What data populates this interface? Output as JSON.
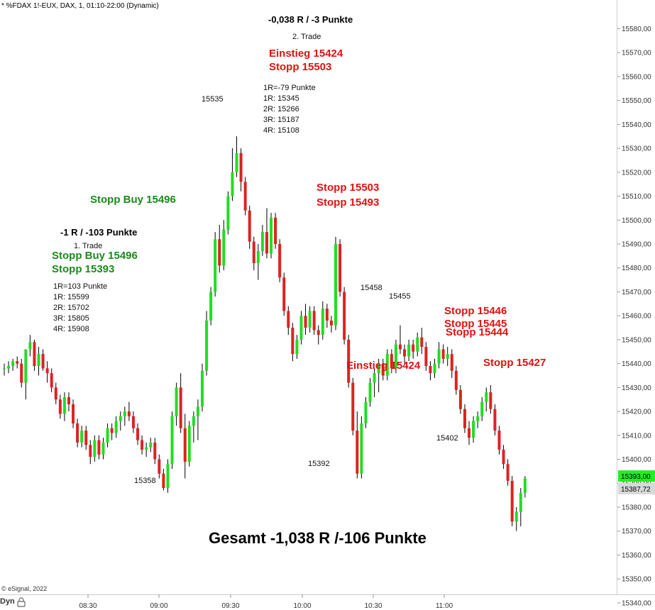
{
  "header": {
    "symbol_line": "* %FDAX 1!-EUX, DAX, 1, 01:10-22:00 (Dynamic)"
  },
  "footer": {
    "copyright": "© eSignal, 2022",
    "dyn_label": "Dyn"
  },
  "colors": {
    "up": "#22dd22",
    "down": "#dd2222",
    "wick": "#000000",
    "green_text": "#1a8a1a",
    "red_text": "#e01010",
    "price_tag_up": "#22ee22",
    "price_tag_gray": "#d8d8d8"
  },
  "chart_data": {
    "type": "candlestick",
    "ylim": [
      15337,
      15592
    ],
    "y_ticks": [
      "15340,00",
      "15350,00",
      "15360,00",
      "15370,00",
      "15380,00",
      "15390,00",
      "15400,00",
      "15410,00",
      "15420,00",
      "15430,00",
      "15440,00",
      "15450,00",
      "15460,00",
      "15470,00",
      "15480,00",
      "15490,00",
      "15500,00",
      "15510,00",
      "15520,00",
      "15530,00",
      "15540,00",
      "15550,00",
      "15560,00",
      "15570,00",
      "15580,00"
    ],
    "x_ticks": [
      "08:30",
      "09:00",
      "09:30",
      "10:00",
      "10:30",
      "11:00"
    ],
    "price_tags": [
      {
        "label": "15393,00",
        "value": 15393,
        "style": "up"
      },
      {
        "label": "15387,72",
        "value": 15387.72,
        "style": "gray"
      }
    ],
    "candles": [
      [
        15438,
        15440,
        15435,
        15438
      ],
      [
        15438,
        15441,
        15436,
        15439
      ],
      [
        15439,
        15442,
        15437,
        15441
      ],
      [
        15441,
        15443,
        15438,
        15440
      ],
      [
        15440,
        15442,
        15430,
        15432
      ],
      [
        15432,
        15446,
        15425,
        15446
      ],
      [
        15446,
        15452,
        15443,
        15449
      ],
      [
        15449,
        15450,
        15437,
        15439
      ],
      [
        15439,
        15447,
        15435,
        15444
      ],
      [
        15444,
        15446,
        15437,
        15438
      ],
      [
        15438,
        15441,
        15432,
        15436
      ],
      [
        15436,
        15438,
        15428,
        15430
      ],
      [
        15430,
        15432,
        15423,
        15425
      ],
      [
        15425,
        15427,
        15417,
        15419
      ],
      [
        15419,
        15428,
        15416,
        15426
      ],
      [
        15426,
        15428,
        15420,
        15423
      ],
      [
        15423,
        15425,
        15413,
        15415
      ],
      [
        15415,
        15417,
        15405,
        15407
      ],
      [
        15407,
        15414,
        15405,
        15412
      ],
      [
        15412,
        15414,
        15404,
        15406
      ],
      [
        15406,
        15408,
        15398,
        15401
      ],
      [
        15401,
        15410,
        15399,
        15408
      ],
      [
        15408,
        15410,
        15400,
        15402
      ],
      [
        15402,
        15409,
        15400,
        15407
      ],
      [
        15407,
        15415,
        15405,
        15413
      ],
      [
        15413,
        15415,
        15408,
        15411
      ],
      [
        15411,
        15418,
        15409,
        15416
      ],
      [
        15416,
        15420,
        15412,
        15418
      ],
      [
        15418,
        15422,
        15414,
        15420
      ],
      [
        15420,
        15424,
        15416,
        15418
      ],
      [
        15418,
        15420,
        15411,
        15413
      ],
      [
        15413,
        15415,
        15406,
        15408
      ],
      [
        15408,
        15410,
        15402,
        15404
      ],
      [
        15404,
        15407,
        15401,
        15405
      ],
      [
        15405,
        15409,
        15403,
        15407
      ],
      [
        15407,
        15409,
        15398,
        15400
      ],
      [
        15400,
        15402,
        15392,
        15394
      ],
      [
        15394,
        15396,
        15387,
        15388
      ],
      [
        15388,
        15400,
        15386,
        15398
      ],
      [
        15398,
        15420,
        15396,
        15418
      ],
      [
        15418,
        15432,
        15414,
        15430
      ],
      [
        15430,
        15436,
        15411,
        15413
      ],
      [
        15413,
        15419,
        15392,
        15399
      ],
      [
        15399,
        15416,
        15397,
        15414
      ],
      [
        15414,
        15420,
        15407,
        15418
      ],
      [
        15418,
        15425,
        15408,
        15422
      ],
      [
        15422,
        15440,
        15420,
        15437
      ],
      [
        15437,
        15462,
        15435,
        15458
      ],
      [
        15458,
        15472,
        15456,
        15470
      ],
      [
        15470,
        15495,
        15468,
        15492
      ],
      [
        15492,
        15498,
        15478,
        15481
      ],
      [
        15481,
        15500,
        15479,
        15496
      ],
      [
        15496,
        15512,
        15494,
        15510
      ],
      [
        15510,
        15530,
        15508,
        15520
      ],
      [
        15520,
        15535,
        15518,
        15528
      ],
      [
        15528,
        15530,
        15512,
        15516
      ],
      [
        15516,
        15518,
        15502,
        15504
      ],
      [
        15504,
        15506,
        15488,
        15491
      ],
      [
        15491,
        15493,
        15479,
        15482
      ],
      [
        15482,
        15490,
        15475,
        15487
      ],
      [
        15487,
        15498,
        15485,
        15495
      ],
      [
        15495,
        15505,
        15484,
        15486
      ],
      [
        15486,
        15503,
        15484,
        15501
      ],
      [
        15501,
        15503,
        15488,
        15490
      ],
      [
        15490,
        15492,
        15474,
        15476
      ],
      [
        15476,
        15478,
        15460,
        15462
      ],
      [
        15462,
        15464,
        15452,
        15455
      ],
      [
        15455,
        15457,
        15441,
        15444
      ],
      [
        15444,
        15452,
        15442,
        15450
      ],
      [
        15450,
        15462,
        15448,
        15460
      ],
      [
        15460,
        15465,
        15452,
        15455
      ],
      [
        15455,
        15464,
        15453,
        15462
      ],
      [
        15462,
        15464,
        15452,
        15454
      ],
      [
        15454,
        15456,
        15448,
        15452
      ],
      [
        15452,
        15466,
        15450,
        15463
      ],
      [
        15463,
        15465,
        15455,
        15458
      ],
      [
        15458,
        15460,
        15453,
        15456
      ],
      [
        15456,
        15493,
        15454,
        15490
      ],
      [
        15490,
        15492,
        15468,
        15470
      ],
      [
        15470,
        15472,
        15448,
        15450
      ],
      [
        15450,
        15452,
        15430,
        15432
      ],
      [
        15432,
        15434,
        15410,
        15412
      ],
      [
        15412,
        15420,
        15392,
        15394
      ],
      [
        15394,
        15418,
        15392,
        15415
      ],
      [
        15415,
        15426,
        15413,
        15424
      ],
      [
        15424,
        15434,
        15422,
        15432
      ],
      [
        15432,
        15438,
        15426,
        15436
      ],
      [
        15436,
        15442,
        15428,
        15440
      ],
      [
        15440,
        15442,
        15433,
        15435
      ],
      [
        15435,
        15446,
        15433,
        15444
      ],
      [
        15444,
        15446,
        15436,
        15438
      ],
      [
        15438,
        15450,
        15436,
        15448
      ],
      [
        15448,
        15456,
        15444,
        15446
      ],
      [
        15446,
        15448,
        15440,
        15443
      ],
      [
        15443,
        15450,
        15441,
        15448
      ],
      [
        15448,
        15450,
        15442,
        15445
      ],
      [
        15445,
        15453,
        15443,
        15451
      ],
      [
        15451,
        15455,
        15444,
        15447
      ],
      [
        15447,
        15449,
        15437,
        15439
      ],
      [
        15439,
        15441,
        15433,
        15436
      ],
      [
        15436,
        15442,
        15434,
        15440
      ],
      [
        15440,
        15449,
        15438,
        15446
      ],
      [
        15446,
        15448,
        15440,
        15442
      ],
      [
        15442,
        15447,
        15439,
        15444
      ],
      [
        15444,
        15446,
        15434,
        15437
      ],
      [
        15437,
        15439,
        15427,
        15429
      ],
      [
        15429,
        15431,
        15419,
        15421
      ],
      [
        15421,
        15423,
        15411,
        15413
      ],
      [
        15413,
        15416,
        15406,
        15409
      ],
      [
        15409,
        15418,
        15407,
        15416
      ],
      [
        15416,
        15420,
        15413,
        15418
      ],
      [
        15418,
        15426,
        15416,
        15424
      ],
      [
        15424,
        15430,
        15420,
        15428
      ],
      [
        15428,
        15431,
        15419,
        15421
      ],
      [
        15421,
        15423,
        15410,
        15412
      ],
      [
        15412,
        15414,
        15402,
        15404
      ],
      [
        15404,
        15406,
        15396,
        15398
      ],
      [
        15398,
        15400,
        15389,
        15391
      ],
      [
        15391,
        15393,
        15372,
        15374
      ],
      [
        15374,
        15380,
        15370,
        15378
      ],
      [
        15378,
        15388,
        15372,
        15386
      ],
      [
        15386,
        15393,
        15384,
        15392
      ]
    ],
    "annotations": [
      {
        "text": "-0,038 R / -3 Punkte",
        "style": "bold-black"
      },
      {
        "text": "2. Trade",
        "style": "small"
      },
      {
        "text": "Einstieg 15424",
        "style": "red"
      },
      {
        "text": "Stopp 15503",
        "style": "red"
      },
      {
        "text": "15535",
        "style": "small"
      },
      {
        "text": "1R=-79 Punkte",
        "style": "small"
      },
      {
        "text": "1R: 15345",
        "style": "small"
      },
      {
        "text": "2R: 15266",
        "style": "small"
      },
      {
        "text": "3R: 15187",
        "style": "small"
      },
      {
        "text": "4R: 15108",
        "style": "small"
      },
      {
        "text": "Stopp Buy 15496",
        "style": "green"
      },
      {
        "text": "-1 R / -103 Punkte",
        "style": "bold-black"
      },
      {
        "text": "1. Trade",
        "style": "small"
      },
      {
        "text": "Stopp Buy 15496",
        "style": "green"
      },
      {
        "text": "Stopp 15393",
        "style": "green"
      },
      {
        "text": "1R=103 Punkte",
        "style": "small"
      },
      {
        "text": "1R: 15599",
        "style": "small"
      },
      {
        "text": "2R: 15702",
        "style": "small"
      },
      {
        "text": "3R: 15805",
        "style": "small"
      },
      {
        "text": "4R: 15908",
        "style": "small"
      },
      {
        "text": "Stopp 15503",
        "style": "red"
      },
      {
        "text": "Stopp 15493",
        "style": "red"
      },
      {
        "text": "15458",
        "style": "small"
      },
      {
        "text": "15455",
        "style": "small"
      },
      {
        "text": "Stopp 15446",
        "style": "red"
      },
      {
        "text": "Stopp 15445",
        "style": "red"
      },
      {
        "text": "Stopp 15444",
        "style": "red"
      },
      {
        "text": "Einstieg 15424",
        "style": "red"
      },
      {
        "text": "Stopp 15427",
        "style": "red"
      },
      {
        "text": "15402",
        "style": "small"
      },
      {
        "text": "15392",
        "style": "small"
      },
      {
        "text": "15358",
        "style": "small"
      },
      {
        "text": "Gesamt -1,038 R /-106 Punkte",
        "style": "big"
      }
    ]
  }
}
